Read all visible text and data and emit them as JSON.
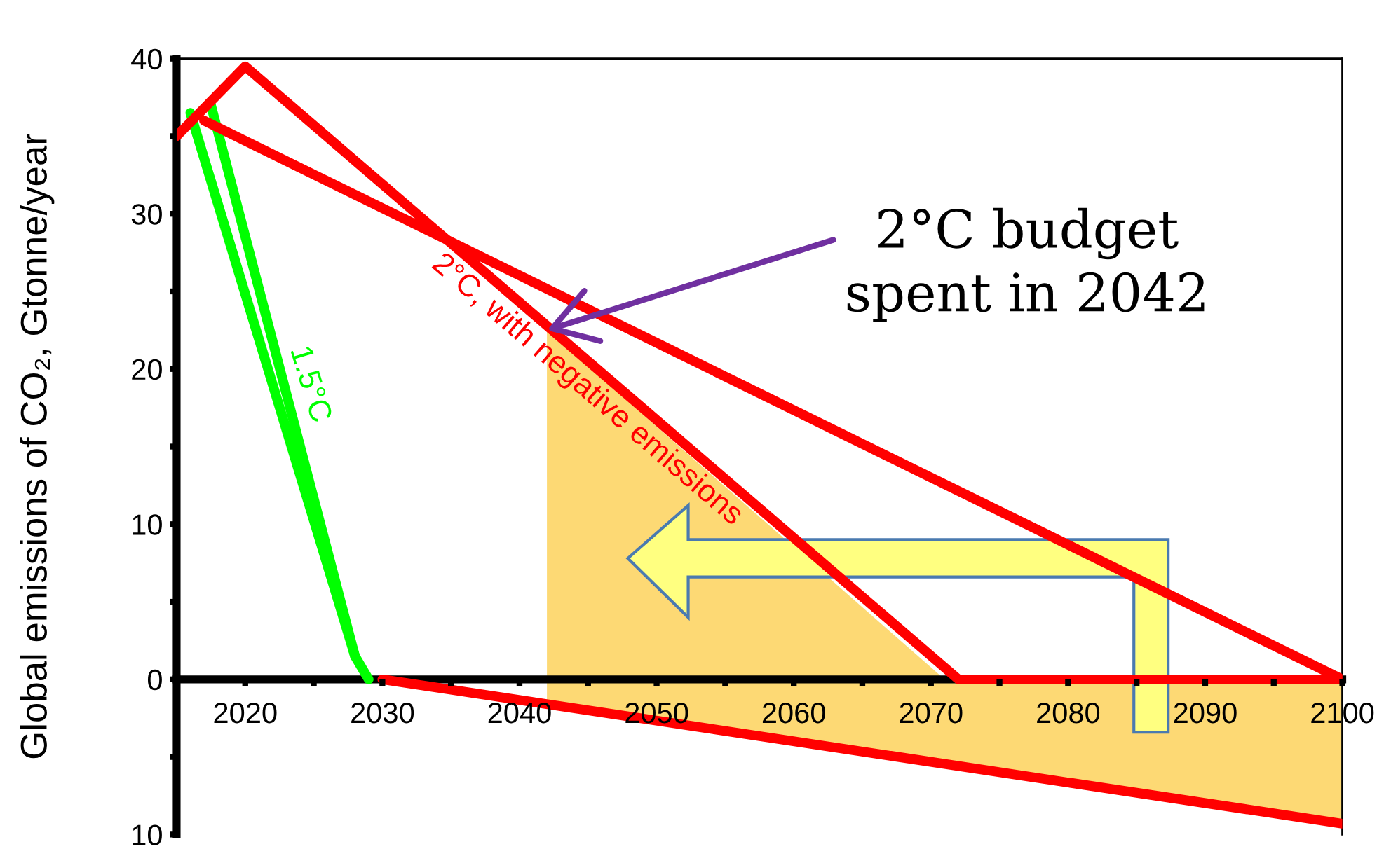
{
  "chart_data": {
    "type": "line",
    "ylabel": "Global emissions of CO₂, Gtonne/year",
    "xlim": [
      2015,
      2100
    ],
    "ylim": [
      -10,
      40
    ],
    "xticks": [
      2020,
      {
        "value": 2025,
        "label": null
      },
      2030,
      {
        "value": 2035,
        "label": null
      },
      2040,
      {
        "value": 2045,
        "label": null
      },
      2050,
      {
        "value": 2055,
        "label": null
      },
      2060,
      {
        "value": 2065,
        "label": null
      },
      2070,
      {
        "value": 2075,
        "label": null
      },
      2080,
      {
        "value": 2085,
        "label": null
      },
      2090,
      {
        "value": 2095,
        "label": null
      },
      2100
    ],
    "yticks": [
      {
        "value": -10,
        "label": "10"
      },
      {
        "value": -5,
        "label": null
      },
      0,
      {
        "value": 5,
        "label": null
      },
      10,
      {
        "value": 15,
        "label": null
      },
      20,
      {
        "value": 25,
        "label": null
      },
      30,
      {
        "value": 35,
        "label": null
      },
      40
    ],
    "grid": false,
    "legend": false,
    "series": [
      {
        "type": "area",
        "color": "#fdd974",
        "x": [
          2042,
          2071
        ],
        "values": [
          22.5,
          0
        ]
      },
      {
        "type": "area",
        "color": "#fdd974",
        "x": [
          2042,
          2100
        ],
        "values": [
          -1.6,
          -9.3
        ]
      },
      {
        "type": "line",
        "name": "1.5°C",
        "color": "#00ff00",
        "x": [
          2016,
          2028,
          2029
        ],
        "values": [
          36.5,
          1.5,
          0
        ]
      },
      {
        "type": "line",
        "color": "#00ff00",
        "x": [
          2017.5,
          2028
        ],
        "values": [
          37,
          1.5
        ]
      },
      {
        "type": "line",
        "name": "2°C, with negative emissions",
        "color": "#ff0000",
        "x": [
          2015,
          2020,
          2072,
          2100
        ],
        "values": [
          35,
          39.5,
          0,
          0
        ]
      },
      {
        "type": "line",
        "color": "#ff0000",
        "x": [
          2017,
          2100
        ],
        "values": [
          36,
          0
        ]
      },
      {
        "type": "line",
        "color": "#ff0000",
        "x": [
          2030,
          2100
        ],
        "values": [
          0,
          -9.3
        ]
      }
    ],
    "annotations": [
      {
        "text": "2°C budget\nspent in 2042",
        "x": 2042,
        "y": 22.5
      }
    ]
  }
}
